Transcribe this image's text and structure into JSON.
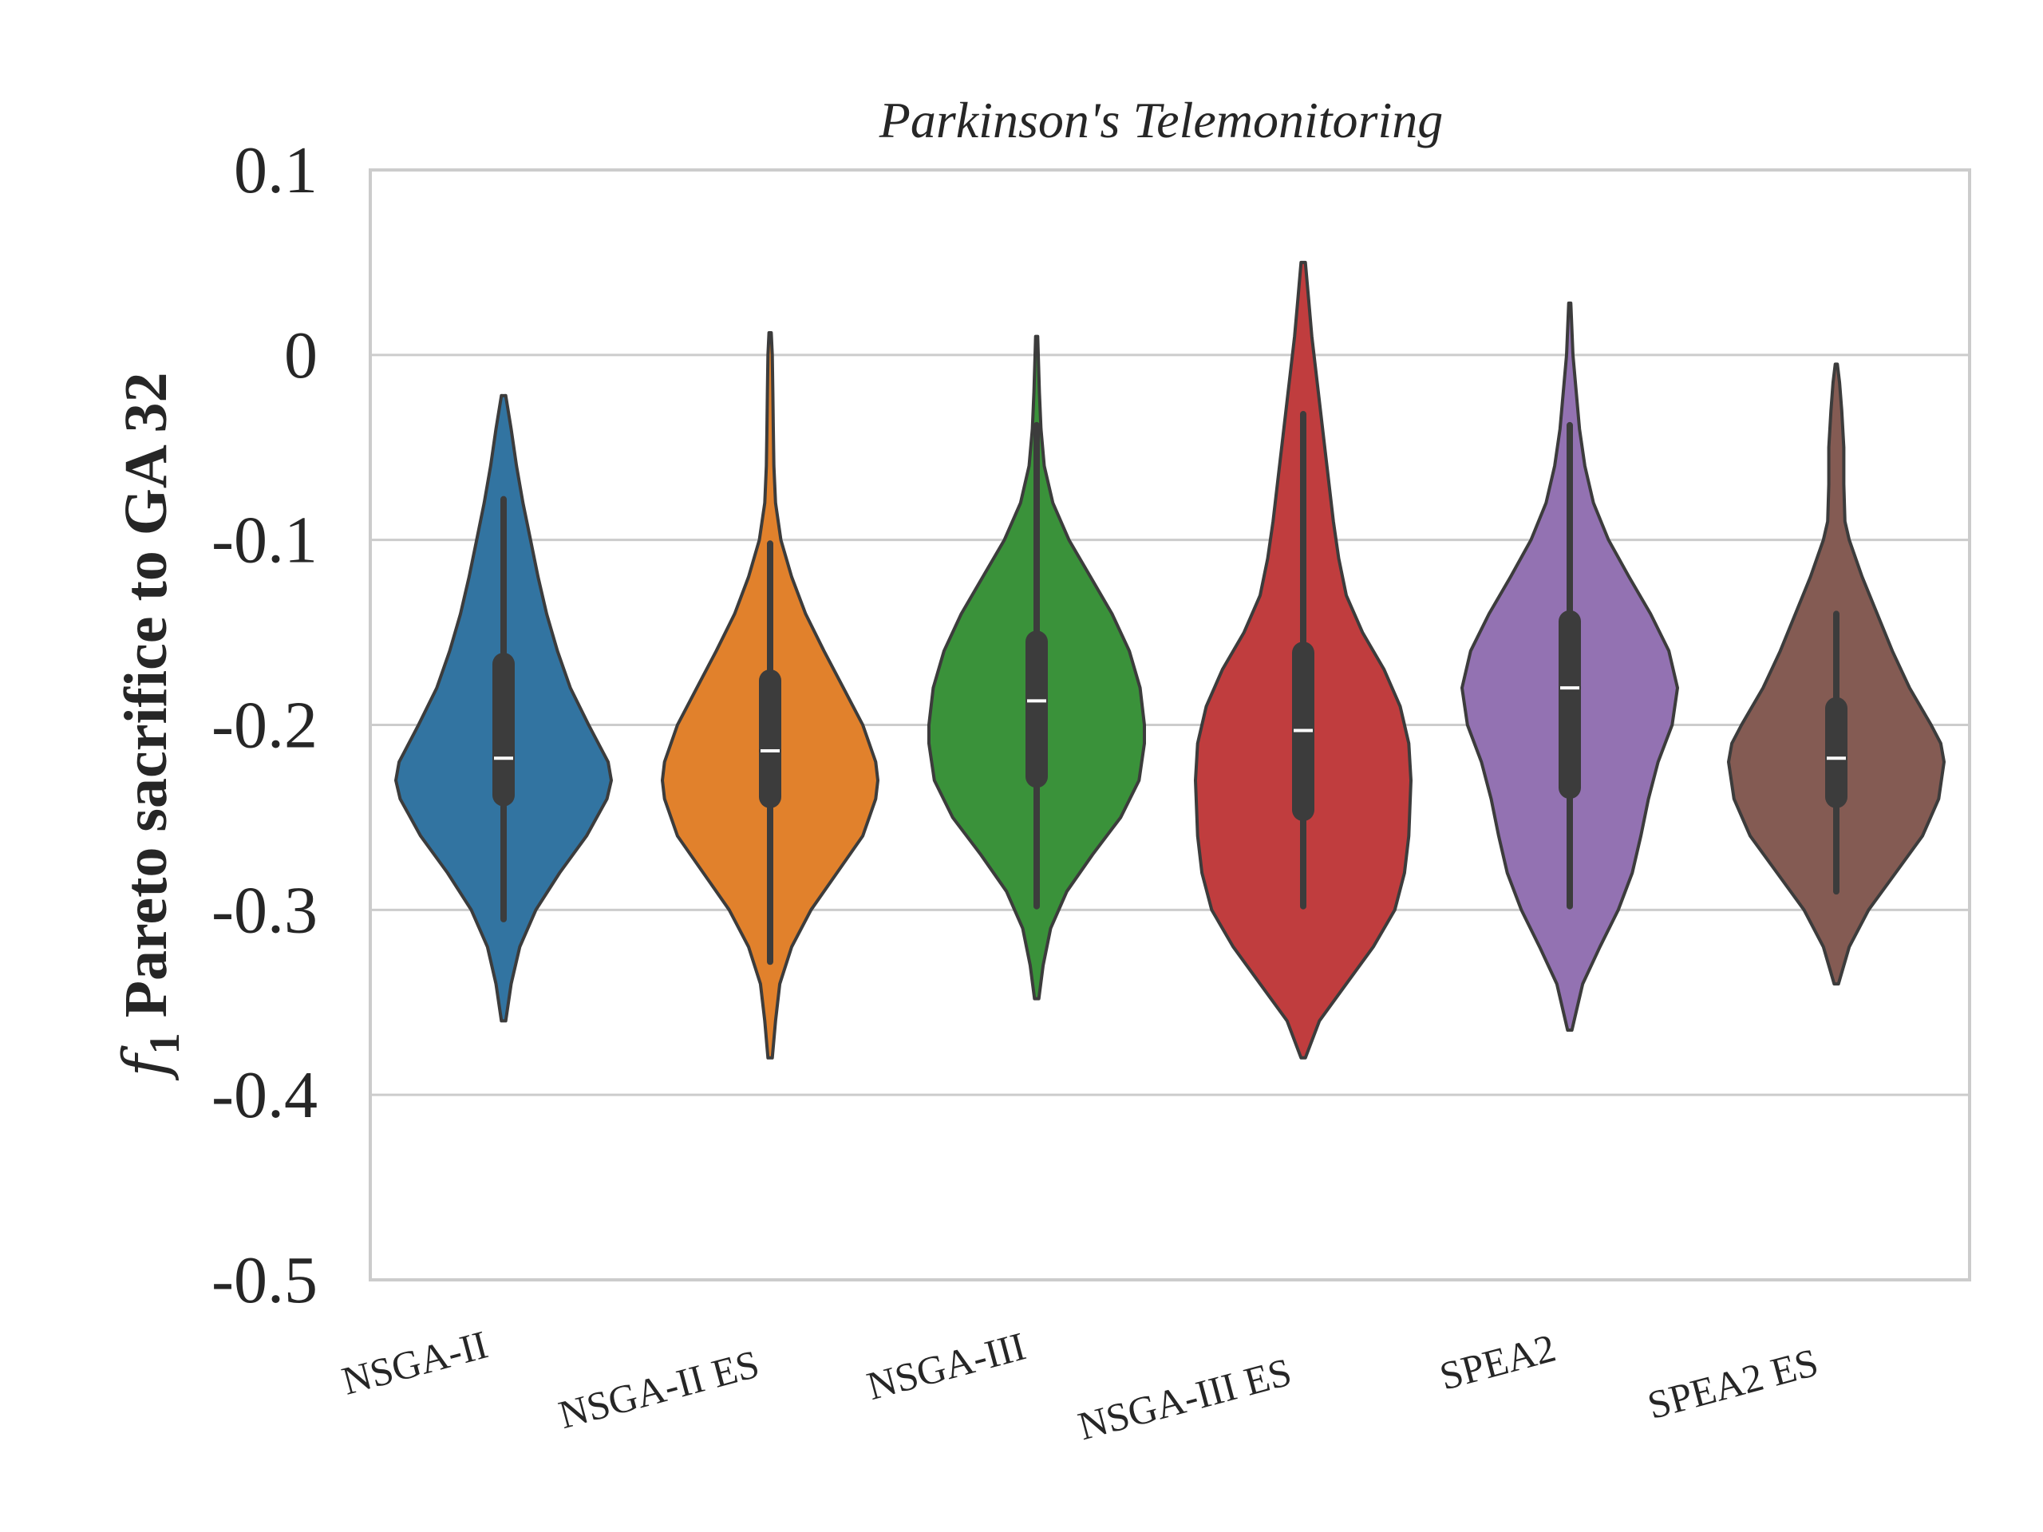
{
  "chart_data": {
    "type": "violin",
    "title": "Parkinson's Telemonitoring",
    "ylabel_symbol": "f",
    "ylabel_subscript": "1",
    "ylabel": " Pareto sacrifice to GA 32",
    "xlabel": "",
    "ylim": [
      -0.5,
      0.1
    ],
    "yticks": [
      0.1,
      0,
      -0.1,
      -0.2,
      -0.3,
      -0.4,
      -0.5
    ],
    "ytick_labels": [
      "0.1",
      "0",
      "-0.1",
      "-0.2",
      "-0.3",
      "-0.4",
      "-0.5"
    ],
    "grid": true,
    "categories": [
      "NSGA-II",
      "NSGA-II ES",
      "NSGA-III",
      "NSGA-III ES",
      "SPEA2",
      "SPEA2 ES"
    ],
    "series": [
      {
        "category": "NSGA-II",
        "color": "#3274a1",
        "min": -0.36,
        "max": -0.022,
        "whisker_low": -0.305,
        "whisker_high": -0.078,
        "q1": -0.244,
        "median": -0.218,
        "q3": -0.161,
        "density": [
          [
            -0.36,
            0.02
          ],
          [
            -0.34,
            0.07
          ],
          [
            -0.32,
            0.15
          ],
          [
            -0.3,
            0.3
          ],
          [
            -0.28,
            0.52
          ],
          [
            -0.26,
            0.77
          ],
          [
            -0.24,
            0.96
          ],
          [
            -0.23,
            1.0
          ],
          [
            -0.22,
            0.97
          ],
          [
            -0.2,
            0.79
          ],
          [
            -0.18,
            0.62
          ],
          [
            -0.16,
            0.5
          ],
          [
            -0.14,
            0.4
          ],
          [
            -0.12,
            0.32
          ],
          [
            -0.1,
            0.25
          ],
          [
            -0.08,
            0.18
          ],
          [
            -0.06,
            0.12
          ],
          [
            -0.04,
            0.07
          ],
          [
            -0.022,
            0.02
          ]
        ]
      },
      {
        "category": "NSGA-II ES",
        "color": "#e1812c",
        "min": -0.38,
        "max": 0.012,
        "whisker_low": -0.328,
        "whisker_high": -0.102,
        "q1": -0.245,
        "median": -0.214,
        "q3": -0.17,
        "density": [
          [
            -0.38,
            0.02
          ],
          [
            -0.36,
            0.05
          ],
          [
            -0.34,
            0.09
          ],
          [
            -0.32,
            0.2
          ],
          [
            -0.3,
            0.38
          ],
          [
            -0.28,
            0.62
          ],
          [
            -0.26,
            0.86
          ],
          [
            -0.24,
            0.98
          ],
          [
            -0.23,
            1.0
          ],
          [
            -0.22,
            0.98
          ],
          [
            -0.2,
            0.86
          ],
          [
            -0.18,
            0.68
          ],
          [
            -0.16,
            0.5
          ],
          [
            -0.14,
            0.33
          ],
          [
            -0.12,
            0.2
          ],
          [
            -0.1,
            0.1
          ],
          [
            -0.08,
            0.05
          ],
          [
            -0.06,
            0.035
          ],
          [
            -0.04,
            0.03
          ],
          [
            -0.02,
            0.025
          ],
          [
            0.0,
            0.02
          ],
          [
            0.012,
            0.01
          ]
        ]
      },
      {
        "category": "NSGA-III",
        "color": "#3a923a",
        "min": -0.348,
        "max": 0.01,
        "whisker_low": -0.298,
        "whisker_high": -0.038,
        "q1": -0.234,
        "median": -0.187,
        "q3": -0.149,
        "density": [
          [
            -0.348,
            0.02
          ],
          [
            -0.33,
            0.06
          ],
          [
            -0.31,
            0.13
          ],
          [
            -0.29,
            0.28
          ],
          [
            -0.27,
            0.52
          ],
          [
            -0.25,
            0.78
          ],
          [
            -0.23,
            0.95
          ],
          [
            -0.21,
            1.0
          ],
          [
            -0.2,
            1.0
          ],
          [
            -0.18,
            0.96
          ],
          [
            -0.16,
            0.86
          ],
          [
            -0.14,
            0.7
          ],
          [
            -0.12,
            0.5
          ],
          [
            -0.1,
            0.3
          ],
          [
            -0.08,
            0.15
          ],
          [
            -0.06,
            0.07
          ],
          [
            -0.04,
            0.04
          ],
          [
            -0.02,
            0.025
          ],
          [
            0.0,
            0.015
          ],
          [
            0.01,
            0.01
          ]
        ]
      },
      {
        "category": "NSGA-III ES",
        "color": "#c03d3e",
        "min": -0.38,
        "max": 0.05,
        "whisker_low": -0.298,
        "whisker_high": -0.032,
        "q1": -0.252,
        "median": -0.203,
        "q3": -0.155,
        "density": [
          [
            -0.38,
            0.02
          ],
          [
            -0.36,
            0.15
          ],
          [
            -0.34,
            0.4
          ],
          [
            -0.32,
            0.65
          ],
          [
            -0.3,
            0.85
          ],
          [
            -0.28,
            0.94
          ],
          [
            -0.26,
            0.98
          ],
          [
            -0.23,
            1.0
          ],
          [
            -0.21,
            0.98
          ],
          [
            -0.19,
            0.9
          ],
          [
            -0.17,
            0.75
          ],
          [
            -0.15,
            0.55
          ],
          [
            -0.13,
            0.4
          ],
          [
            -0.11,
            0.33
          ],
          [
            -0.09,
            0.28
          ],
          [
            -0.07,
            0.24
          ],
          [
            -0.05,
            0.2
          ],
          [
            -0.03,
            0.16
          ],
          [
            -0.01,
            0.12
          ],
          [
            0.01,
            0.08
          ],
          [
            0.03,
            0.05
          ],
          [
            0.05,
            0.02
          ]
        ]
      },
      {
        "category": "SPEA2",
        "color": "#9372b2",
        "min": -0.365,
        "max": 0.028,
        "whisker_low": -0.298,
        "whisker_high": -0.038,
        "q1": -0.24,
        "median": -0.18,
        "q3": -0.138,
        "density": [
          [
            -0.365,
            0.02
          ],
          [
            -0.34,
            0.12
          ],
          [
            -0.32,
            0.28
          ],
          [
            -0.3,
            0.45
          ],
          [
            -0.28,
            0.58
          ],
          [
            -0.26,
            0.66
          ],
          [
            -0.24,
            0.73
          ],
          [
            -0.22,
            0.82
          ],
          [
            -0.2,
            0.95
          ],
          [
            -0.18,
            1.0
          ],
          [
            -0.16,
            0.92
          ],
          [
            -0.14,
            0.75
          ],
          [
            -0.12,
            0.55
          ],
          [
            -0.1,
            0.36
          ],
          [
            -0.08,
            0.22
          ],
          [
            -0.06,
            0.14
          ],
          [
            -0.04,
            0.09
          ],
          [
            -0.02,
            0.06
          ],
          [
            0.0,
            0.03
          ],
          [
            0.028,
            0.01
          ]
        ]
      },
      {
        "category": "SPEA2 ES",
        "color": "#845b53",
        "min": -0.34,
        "max": -0.005,
        "whisker_low": -0.29,
        "whisker_high": -0.14,
        "q1": -0.245,
        "median": -0.218,
        "q3": -0.185,
        "density": [
          [
            -0.34,
            0.02
          ],
          [
            -0.32,
            0.12
          ],
          [
            -0.3,
            0.3
          ],
          [
            -0.28,
            0.55
          ],
          [
            -0.26,
            0.8
          ],
          [
            -0.24,
            0.95
          ],
          [
            -0.22,
            1.0
          ],
          [
            -0.21,
            0.97
          ],
          [
            -0.2,
            0.88
          ],
          [
            -0.18,
            0.68
          ],
          [
            -0.16,
            0.52
          ],
          [
            -0.14,
            0.38
          ],
          [
            -0.12,
            0.24
          ],
          [
            -0.1,
            0.12
          ],
          [
            -0.09,
            0.08
          ],
          [
            -0.07,
            0.07
          ],
          [
            -0.05,
            0.07
          ],
          [
            -0.03,
            0.05
          ],
          [
            -0.015,
            0.03
          ],
          [
            -0.005,
            0.01
          ]
        ]
      }
    ]
  }
}
